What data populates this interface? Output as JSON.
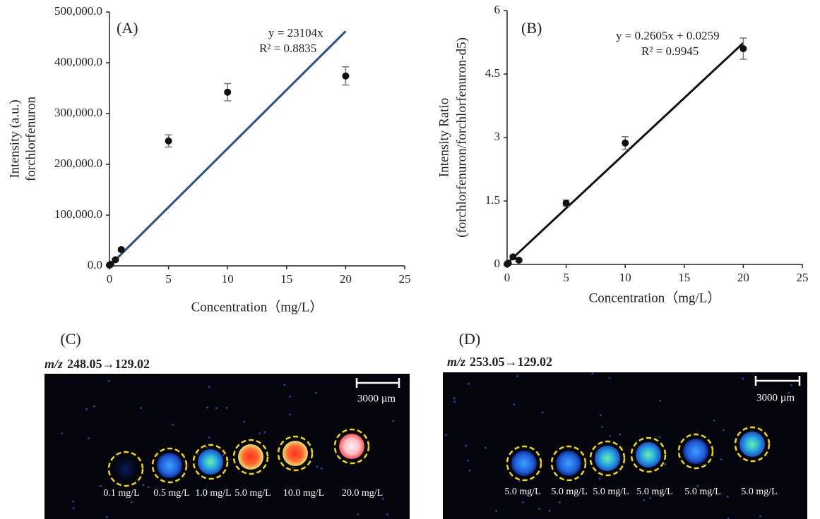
{
  "chart_data": [
    {
      "type": "scatter",
      "label": "(A)",
      "equation": "y = 23104x",
      "r_squared": "R² = 0.8835",
      "xlabel": "Concentration（mg/L）",
      "ylabel": [
        "Intensity (a.u.)",
        "forchlorfenuron"
      ],
      "x": [
        0,
        0.1,
        0.5,
        1,
        5,
        10,
        20
      ],
      "y": [
        1500,
        3000,
        12000,
        32000,
        246000,
        342000,
        374000
      ],
      "errors": [
        1000,
        1000,
        2000,
        3000,
        12000,
        17000,
        18000
      ],
      "color": "#111111",
      "trendline": {
        "x": [
          0,
          20
        ],
        "y": [
          0,
          462080
        ],
        "color": "#2b4f8a"
      },
      "xlim": [
        0,
        25
      ],
      "xticks": [
        0,
        5,
        10,
        15,
        20,
        25
      ],
      "ylim": [
        0,
        500000
      ],
      "yticks": [
        {
          "value": 0,
          "label": "0.0"
        },
        {
          "value": 100000,
          "label": "100,000.0"
        },
        {
          "value": 200000,
          "label": "200,000.0"
        },
        {
          "value": 300000,
          "label": "300,000.0"
        },
        {
          "value": 400000,
          "label": "400,000.0"
        },
        {
          "value": 500000,
          "label": "500,000.0"
        }
      ]
    },
    {
      "type": "scatter",
      "label": "(B)",
      "equation": "y = 0.2605x + 0.0259",
      "r_squared": "R² = 0.9945",
      "xlabel": "Concentration（mg/L）",
      "ylabel": [
        "Intensity Ratio",
        "(forchlorfenuron/forchlorfenuron-d5)"
      ],
      "x": [
        0,
        0.1,
        0.5,
        1,
        5,
        10,
        20
      ],
      "y": [
        0.01,
        0.03,
        0.18,
        0.1,
        1.45,
        2.87,
        5.1
      ],
      "errors": [
        0.01,
        0.01,
        0.03,
        0.02,
        0.07,
        0.15,
        0.25
      ],
      "color": "#111111",
      "trendline": {
        "x": [
          0,
          20
        ],
        "y": [
          0.0259,
          5.2359
        ],
        "color": "#111111"
      },
      "xlim": [
        0,
        25
      ],
      "xticks": [
        0,
        5,
        10,
        15,
        20,
        25
      ],
      "ylim": [
        0,
        6
      ],
      "yticks": [
        0,
        1.5,
        3,
        4.5,
        6
      ]
    }
  ],
  "images": [
    {
      "label": "(C)",
      "mz": "m/z",
      "transition": "248.05→129.02",
      "scale": "3000  µm",
      "spots": [
        "0.1 mg/L",
        "0.5 mg/L",
        "1.0 mg/L",
        "5.0 mg/L",
        "10.0 mg/L",
        "20.0 mg/L"
      ]
    },
    {
      "label": "(D)",
      "mz": "m/z",
      "transition": "253.05→129.02",
      "scale": "3000  µm",
      "spots": [
        "5.0 mg/L",
        "5.0 mg/L",
        "5.0 mg/L",
        "5.0 mg/L",
        "5.0 mg/L",
        "5.0 mg/L"
      ]
    }
  ]
}
